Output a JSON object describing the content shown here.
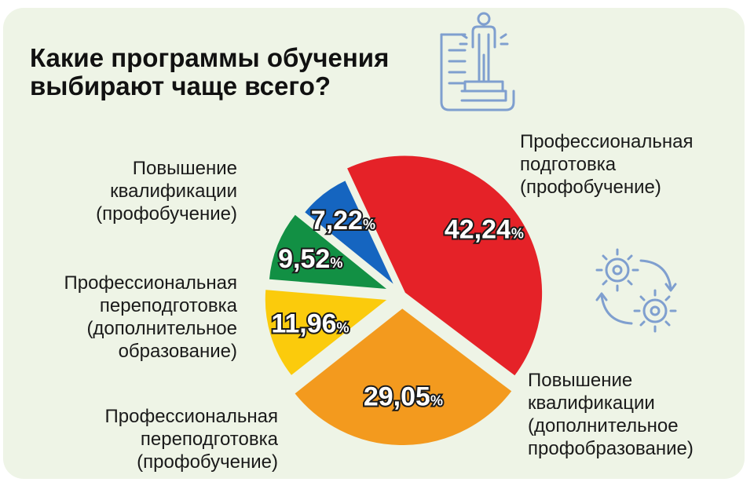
{
  "title": "Какие программы обучения выбирают чаще всего?",
  "colors": {
    "background": "#eef4e6",
    "red": "#e52228",
    "orange": "#f39a1e",
    "yellow": "#fbcb0c",
    "green": "#129044",
    "blue": "#1565c0",
    "icon": "#7f9fcf"
  },
  "icons": [
    "person-on-document-icon",
    "gears-cycle-icon"
  ],
  "chart_data": {
    "type": "pie",
    "unit": "%",
    "slices": [
      {
        "value_label": "42,24",
        "value": 42.24,
        "label": "Профессиональная подготовка (профобучение)",
        "label_lines": [
          "Профессиональная",
          "подготовка",
          "(профобучение)"
        ],
        "color": "#e52228"
      },
      {
        "value_label": "29,05",
        "value": 29.05,
        "label": "Повышение квалификации (дополнительное профобразование)",
        "label_lines": [
          "Повышение",
          "квалификации",
          "(дополнительное",
          "профобразование)"
        ],
        "color": "#f39a1e"
      },
      {
        "value_label": "11,96",
        "value": 11.96,
        "label": "Профессиональная переподготовка (профобучение)",
        "label_lines": [
          "Профессиональная",
          "переподготовка",
          "(профобучение)"
        ],
        "color": "#fbcb0c"
      },
      {
        "value_label": "9,52",
        "value": 9.52,
        "label": "Профессиональная переподготовка (дополнительное образование)",
        "label_lines": [
          "Профессиональная",
          "переподготовка",
          "(дополнительное",
          "образование)"
        ],
        "color": "#129044"
      },
      {
        "value_label": "7,22",
        "value": 7.22,
        "label": "Повышение квалификации (профобучение)",
        "label_lines": [
          "Повышение",
          "квалификации",
          "(профобучение)"
        ],
        "color": "#1565c0"
      }
    ]
  }
}
